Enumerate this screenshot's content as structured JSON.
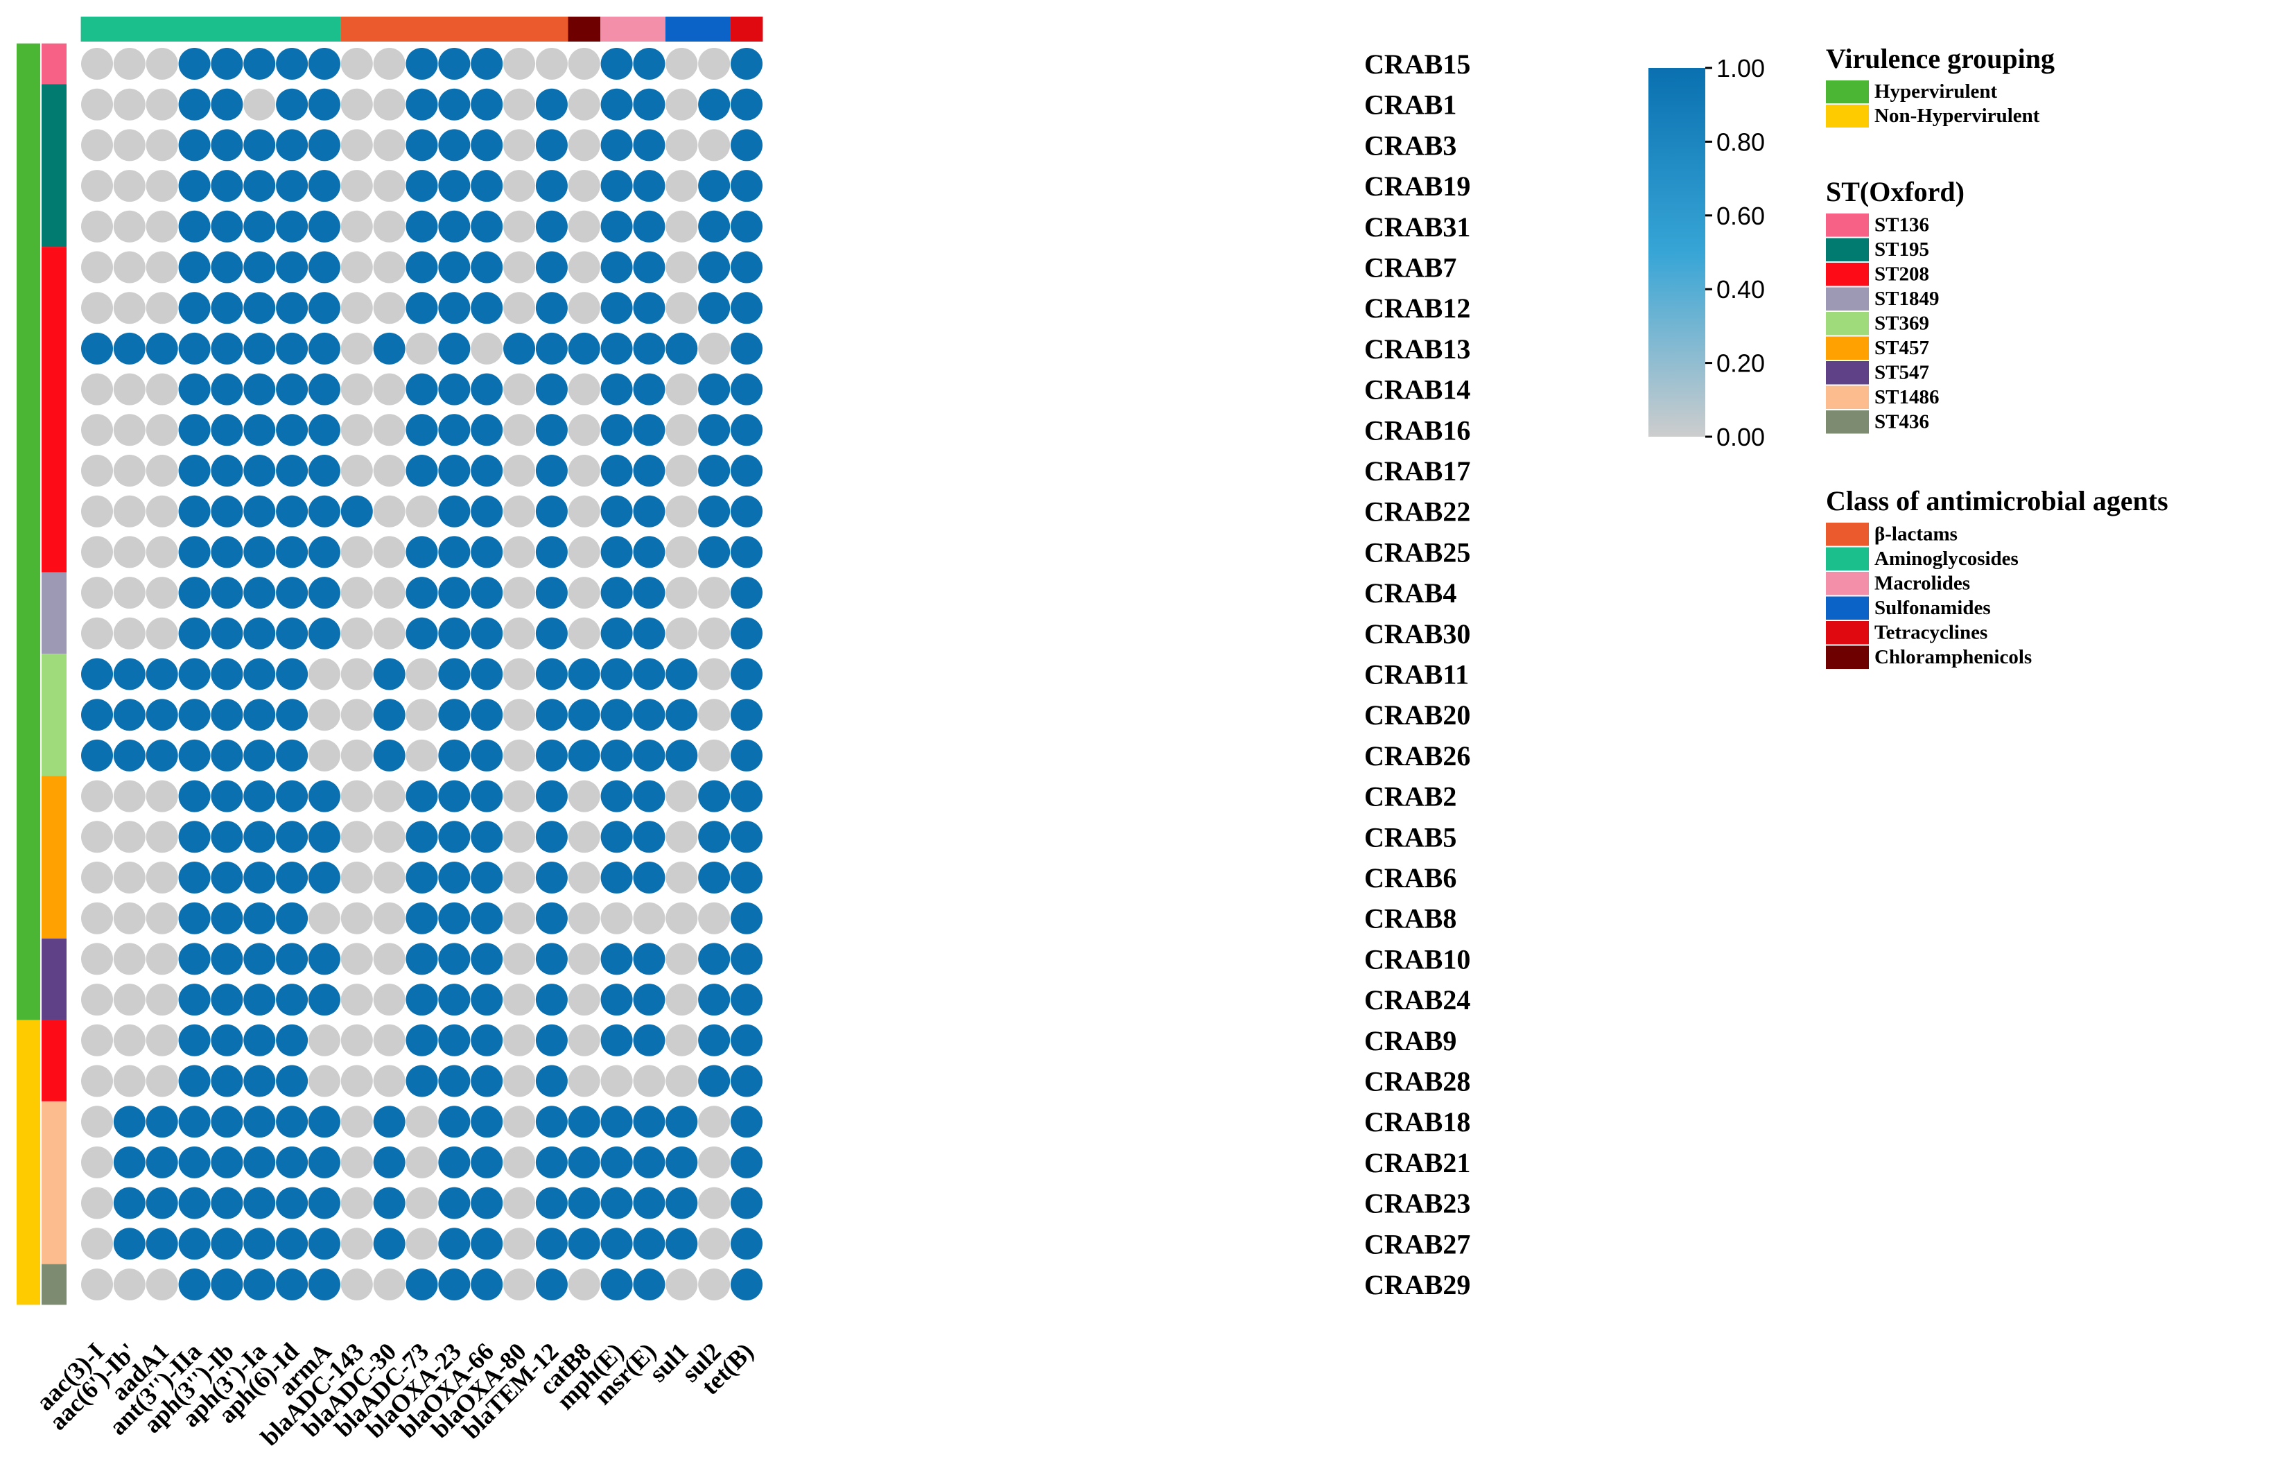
{
  "chart_data": {
    "type": "heatmap",
    "style": "dot-matrix",
    "genes": [
      "aac(3)-I",
      "aac(6')-Ib'",
      "aadA1",
      "ant(3'')-IIa",
      "aph(3'')-Ib",
      "aph(3')-Ia",
      "aph(6)-Id",
      "armA",
      "blaADC-143",
      "blaADC-30",
      "blaADC-73",
      "blaOXA-23",
      "blaOXA-66",
      "blaOXA-80",
      "blaTEM-12",
      "catB8",
      "mph(E)",
      "msr(E)",
      "sul1",
      "sul2",
      "tet(B)"
    ],
    "gene_classes": [
      "Aminoglycosides",
      "Aminoglycosides",
      "Aminoglycosides",
      "Aminoglycosides",
      "Aminoglycosides",
      "Aminoglycosides",
      "Aminoglycosides",
      "Aminoglycosides",
      "β-lactams",
      "β-lactams",
      "β-lactams",
      "β-lactams",
      "β-lactams",
      "β-lactams",
      "β-lactams",
      "Chloramphenicols",
      "Macrolides",
      "Macrolides",
      "Sulfonamides",
      "Sulfonamides",
      "Tetracyclines"
    ],
    "isolates": [
      "CRAB15",
      "CRAB1",
      "CRAB3",
      "CRAB19",
      "CRAB31",
      "CRAB7",
      "CRAB12",
      "CRAB13",
      "CRAB14",
      "CRAB16",
      "CRAB17",
      "CRAB22",
      "CRAB25",
      "CRAB4",
      "CRAB30",
      "CRAB11",
      "CRAB20",
      "CRAB26",
      "CRAB2",
      "CRAB5",
      "CRAB6",
      "CRAB8",
      "CRAB10",
      "CRAB24",
      "CRAB9",
      "CRAB28",
      "CRAB18",
      "CRAB21",
      "CRAB23",
      "CRAB27",
      "CRAB29"
    ],
    "virulence": [
      "Hypervirulent",
      "Hypervirulent",
      "Hypervirulent",
      "Hypervirulent",
      "Hypervirulent",
      "Hypervirulent",
      "Hypervirulent",
      "Hypervirulent",
      "Hypervirulent",
      "Hypervirulent",
      "Hypervirulent",
      "Hypervirulent",
      "Hypervirulent",
      "Hypervirulent",
      "Hypervirulent",
      "Hypervirulent",
      "Hypervirulent",
      "Hypervirulent",
      "Hypervirulent",
      "Hypervirulent",
      "Hypervirulent",
      "Hypervirulent",
      "Hypervirulent",
      "Hypervirulent",
      "Non-Hypervirulent",
      "Non-Hypervirulent",
      "Non-Hypervirulent",
      "Non-Hypervirulent",
      "Non-Hypervirulent",
      "Non-Hypervirulent",
      "Non-Hypervirulent"
    ],
    "st_oxford": [
      "ST136",
      "ST195",
      "ST195",
      "ST195",
      "ST195",
      "ST208",
      "ST208",
      "ST208",
      "ST208",
      "ST208",
      "ST208",
      "ST208",
      "ST208",
      "ST1849",
      "ST1849",
      "ST369",
      "ST369",
      "ST369",
      "ST457",
      "ST457",
      "ST457",
      "ST457",
      "ST547",
      "ST547",
      "ST208",
      "ST208",
      "ST1486",
      "ST1486",
      "ST1486",
      "ST1486",
      "ST436"
    ],
    "matrix": [
      [
        0,
        0,
        0,
        1,
        1,
        1,
        1,
        1,
        0,
        0,
        1,
        1,
        1,
        0,
        0,
        0,
        1,
        1,
        0,
        0,
        1
      ],
      [
        0,
        0,
        0,
        1,
        1,
        0,
        1,
        1,
        0,
        0,
        1,
        1,
        1,
        0,
        1,
        0,
        1,
        1,
        0,
        1,
        1
      ],
      [
        0,
        0,
        0,
        1,
        1,
        1,
        1,
        1,
        0,
        0,
        1,
        1,
        1,
        0,
        1,
        0,
        1,
        1,
        0,
        0,
        1
      ],
      [
        0,
        0,
        0,
        1,
        1,
        1,
        1,
        1,
        0,
        0,
        1,
        1,
        1,
        0,
        1,
        0,
        1,
        1,
        0,
        1,
        1
      ],
      [
        0,
        0,
        0,
        1,
        1,
        1,
        1,
        1,
        0,
        0,
        1,
        1,
        1,
        0,
        1,
        0,
        1,
        1,
        0,
        1,
        1
      ],
      [
        0,
        0,
        0,
        1,
        1,
        1,
        1,
        1,
        0,
        0,
        1,
        1,
        1,
        0,
        1,
        0,
        1,
        1,
        0,
        1,
        1
      ],
      [
        0,
        0,
        0,
        1,
        1,
        1,
        1,
        1,
        0,
        0,
        1,
        1,
        1,
        0,
        1,
        0,
        1,
        1,
        0,
        1,
        1
      ],
      [
        1,
        1,
        1,
        1,
        1,
        1,
        1,
        1,
        0,
        1,
        0,
        1,
        0,
        1,
        1,
        1,
        1,
        1,
        1,
        0,
        1
      ],
      [
        0,
        0,
        0,
        1,
        1,
        1,
        1,
        1,
        0,
        0,
        1,
        1,
        1,
        0,
        1,
        0,
        1,
        1,
        0,
        1,
        1
      ],
      [
        0,
        0,
        0,
        1,
        1,
        1,
        1,
        1,
        0,
        0,
        1,
        1,
        1,
        0,
        1,
        0,
        1,
        1,
        0,
        1,
        1
      ],
      [
        0,
        0,
        0,
        1,
        1,
        1,
        1,
        1,
        0,
        0,
        1,
        1,
        1,
        0,
        1,
        0,
        1,
        1,
        0,
        1,
        1
      ],
      [
        0,
        0,
        0,
        1,
        1,
        1,
        1,
        1,
        1,
        0,
        0,
        1,
        1,
        0,
        1,
        0,
        1,
        1,
        0,
        1,
        1
      ],
      [
        0,
        0,
        0,
        1,
        1,
        1,
        1,
        1,
        0,
        0,
        1,
        1,
        1,
        0,
        1,
        0,
        1,
        1,
        0,
        1,
        1
      ],
      [
        0,
        0,
        0,
        1,
        1,
        1,
        1,
        1,
        0,
        0,
        1,
        1,
        1,
        0,
        1,
        0,
        1,
        1,
        0,
        0,
        1
      ],
      [
        0,
        0,
        0,
        1,
        1,
        1,
        1,
        1,
        0,
        0,
        1,
        1,
        1,
        0,
        1,
        0,
        1,
        1,
        0,
        0,
        1
      ],
      [
        1,
        1,
        1,
        1,
        1,
        1,
        1,
        0,
        0,
        1,
        0,
        1,
        1,
        0,
        1,
        1,
        1,
        1,
        1,
        0,
        1
      ],
      [
        1,
        1,
        1,
        1,
        1,
        1,
        1,
        0,
        0,
        1,
        0,
        1,
        1,
        0,
        1,
        1,
        1,
        1,
        1,
        0,
        1
      ],
      [
        1,
        1,
        1,
        1,
        1,
        1,
        1,
        0,
        0,
        1,
        0,
        1,
        1,
        0,
        1,
        1,
        1,
        1,
        1,
        0,
        1
      ],
      [
        0,
        0,
        0,
        1,
        1,
        1,
        1,
        1,
        0,
        0,
        1,
        1,
        1,
        0,
        1,
        0,
        1,
        1,
        0,
        1,
        1
      ],
      [
        0,
        0,
        0,
        1,
        1,
        1,
        1,
        1,
        0,
        0,
        1,
        1,
        1,
        0,
        1,
        0,
        1,
        1,
        0,
        1,
        1
      ],
      [
        0,
        0,
        0,
        1,
        1,
        1,
        1,
        1,
        0,
        0,
        1,
        1,
        1,
        0,
        1,
        0,
        1,
        1,
        0,
        1,
        1
      ],
      [
        0,
        0,
        0,
        1,
        1,
        1,
        1,
        0,
        0,
        0,
        1,
        1,
        1,
        0,
        1,
        0,
        0,
        0,
        0,
        0,
        1
      ],
      [
        0,
        0,
        0,
        1,
        1,
        1,
        1,
        1,
        0,
        0,
        1,
        1,
        1,
        0,
        1,
        0,
        1,
        1,
        0,
        1,
        1
      ],
      [
        0,
        0,
        0,
        1,
        1,
        1,
        1,
        1,
        0,
        0,
        1,
        1,
        1,
        0,
        1,
        0,
        1,
        1,
        0,
        1,
        1
      ],
      [
        0,
        0,
        0,
        1,
        1,
        1,
        1,
        0,
        0,
        0,
        1,
        1,
        1,
        0,
        1,
        0,
        1,
        1,
        0,
        1,
        1
      ],
      [
        0,
        0,
        0,
        1,
        1,
        1,
        1,
        0,
        0,
        0,
        1,
        1,
        1,
        0,
        1,
        0,
        0,
        0,
        0,
        1,
        1
      ],
      [
        0,
        1,
        1,
        1,
        1,
        1,
        1,
        1,
        0,
        1,
        0,
        1,
        1,
        0,
        1,
        1,
        1,
        1,
        1,
        0,
        1
      ],
      [
        0,
        1,
        1,
        1,
        1,
        1,
        1,
        1,
        0,
        1,
        0,
        1,
        1,
        0,
        1,
        1,
        1,
        1,
        1,
        0,
        1
      ],
      [
        0,
        1,
        1,
        1,
        1,
        1,
        1,
        1,
        0,
        1,
        0,
        1,
        1,
        0,
        1,
        1,
        1,
        1,
        1,
        0,
        1
      ],
      [
        0,
        1,
        1,
        1,
        1,
        1,
        1,
        1,
        0,
        1,
        0,
        1,
        1,
        0,
        1,
        1,
        1,
        1,
        1,
        0,
        1
      ],
      [
        0,
        0,
        0,
        1,
        1,
        1,
        1,
        1,
        0,
        0,
        1,
        1,
        1,
        0,
        1,
        0,
        1,
        1,
        0,
        0,
        1
      ]
    ],
    "colorbar": {
      "range": [
        0,
        1
      ],
      "ticks": [
        "1.00",
        "0.80",
        "0.60",
        "0.40",
        "0.20",
        "0.00"
      ],
      "color_low": "#cdcdcd",
      "color_mid": "#37a5d6",
      "color_high": "#0a70b0"
    },
    "legend": {
      "virulence": {
        "title": "Virulence grouping",
        "items": [
          {
            "label": "Hypervirulent",
            "color": "#4bb534"
          },
          {
            "label": "Non-Hypervirulent",
            "color": "#fecb00"
          }
        ]
      },
      "st": {
        "title": "ST(Oxford)",
        "items": [
          {
            "label": "ST136",
            "color": "#f76186"
          },
          {
            "label": "ST195",
            "color": "#017b70"
          },
          {
            "label": "ST208",
            "color": "#fe0b18"
          },
          {
            "label": "ST1849",
            "color": "#9d99b4"
          },
          {
            "label": "ST369",
            "color": "#9fda7b"
          },
          {
            "label": "ST457",
            "color": "#fea101"
          },
          {
            "label": "ST547",
            "color": "#5e4186"
          },
          {
            "label": "ST1486",
            "color": "#fdbc8e"
          },
          {
            "label": "ST436",
            "color": "#7d8b70"
          }
        ]
      },
      "classes": {
        "title": "Class of antimicrobial agents",
        "items": [
          {
            "label": "β-lactams",
            "color": "#eb5a2c"
          },
          {
            "label": "Aminoglycosides",
            "color": "#1bbf8b"
          },
          {
            "label": "Macrolides",
            "color": "#f48fa9"
          },
          {
            "label": "Sulfonamides",
            "color": "#0b63c8"
          },
          {
            "label": "Tetracyclines",
            "color": "#e10910"
          },
          {
            "label": "Chloramphenicols",
            "color": "#6e0000"
          }
        ]
      }
    }
  }
}
